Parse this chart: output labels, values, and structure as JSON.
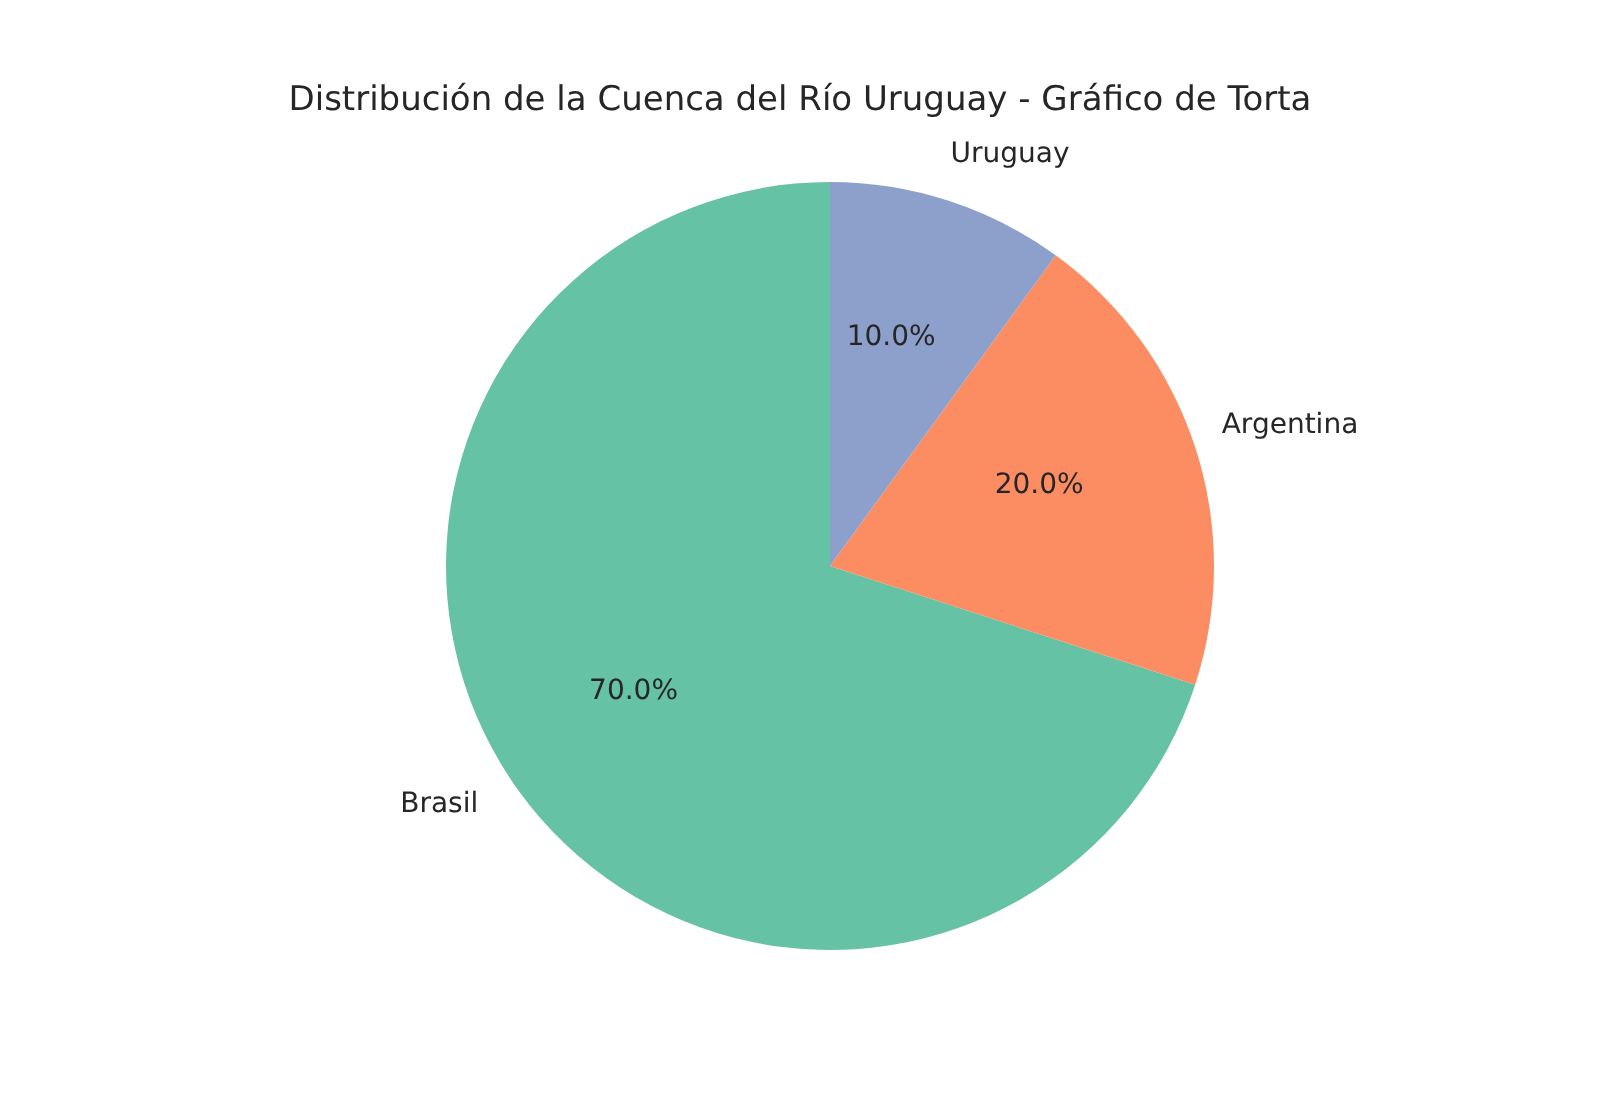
{
  "chart_data": {
    "type": "pie",
    "title": "Distribución de la Cuenca del Río Uruguay - Gráfico de Torta",
    "categories": [
      "Brasil",
      "Argentina",
      "Uruguay"
    ],
    "values": [
      70,
      20,
      10
    ],
    "value_labels": [
      "70.0%",
      "20.0%",
      "10.0%"
    ],
    "colors": [
      "#66c2a5",
      "#fc8d62",
      "#8da0cb"
    ],
    "legend": false
  }
}
